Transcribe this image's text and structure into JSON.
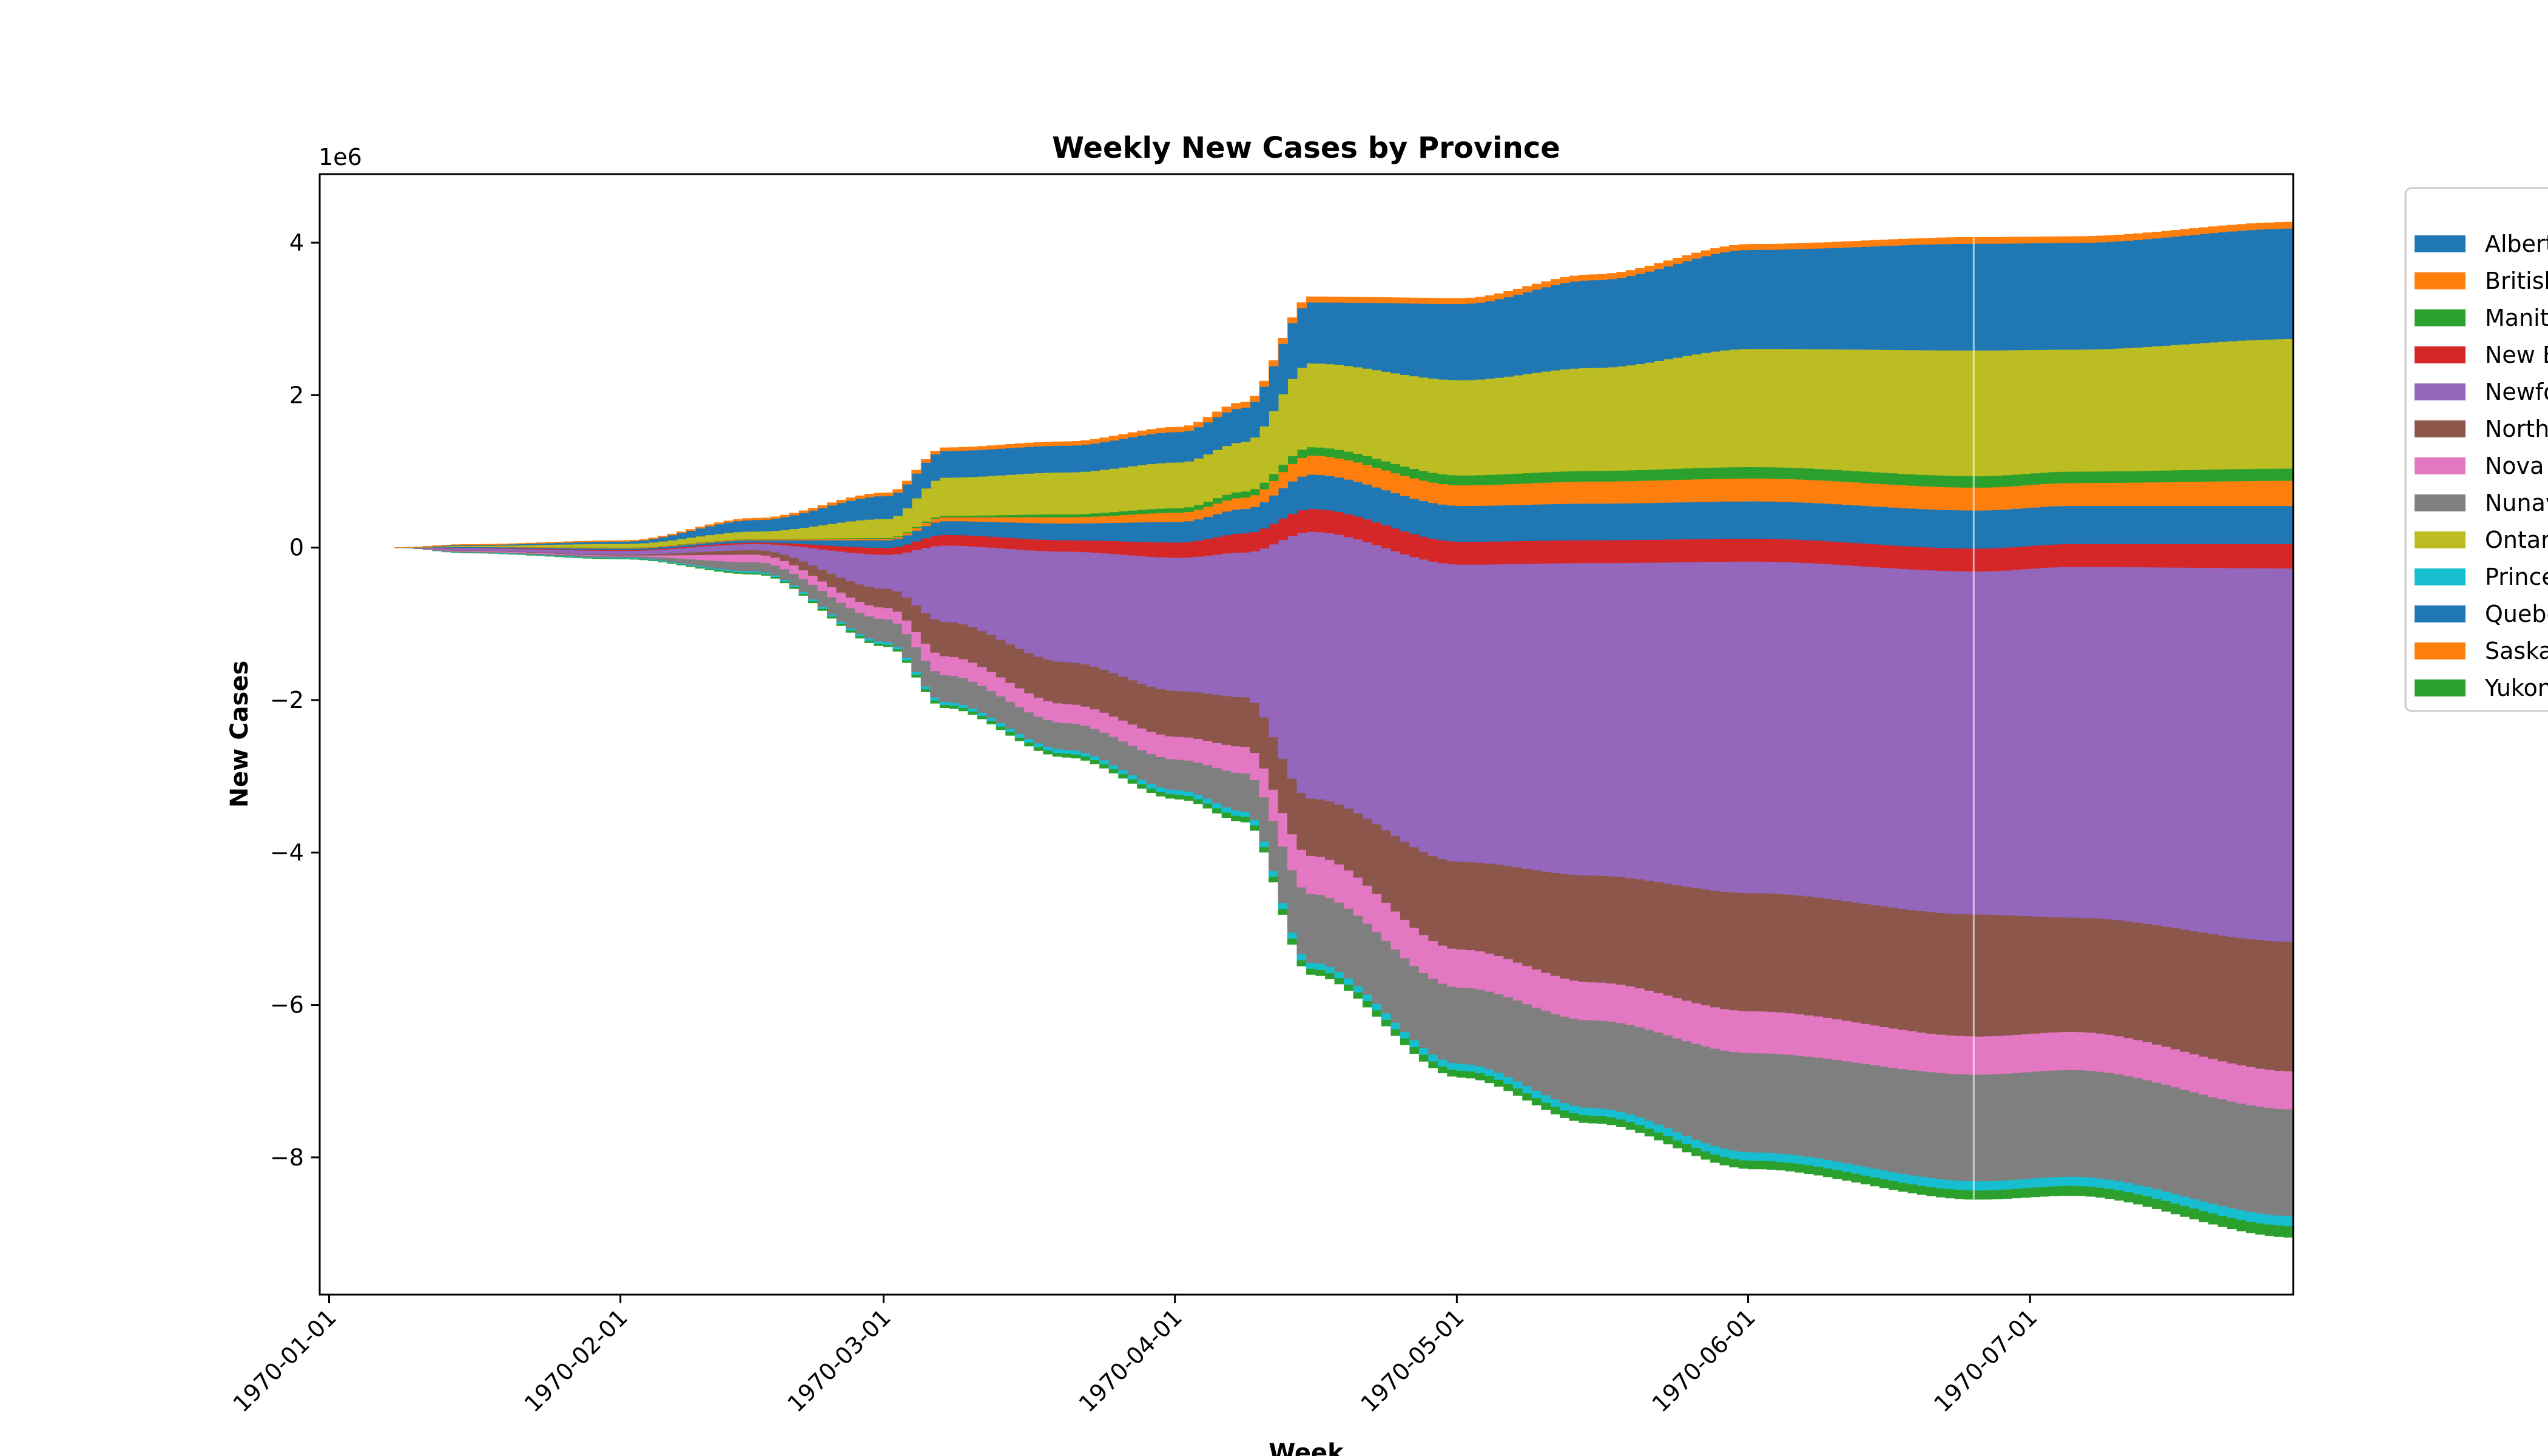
{
  "chart_data": {
    "type": "area",
    "style": "streamgraph (wiggle baseline, step-wise weekly bands)",
    "title": "Weekly New Cases by Province",
    "xlabel": "Week",
    "ylabel": "New Cases",
    "y_offset_label": "1e6",
    "ylim": [
      -9.8,
      4.9
    ],
    "y_ticks": [
      4,
      2,
      0,
      -2,
      -4,
      -6,
      -8
    ],
    "y_tick_labels": [
      "4",
      "2",
      "0",
      "−2",
      "−4",
      "−6",
      "−8"
    ],
    "xlim": [
      "1969-12-31",
      "1970-07-29"
    ],
    "x_ticks": [
      "1970-01-01",
      "1970-02-01",
      "1970-03-01",
      "1970-04-01",
      "1970-05-01",
      "1970-06-01",
      "1970-07-01"
    ],
    "grid": false,
    "legend_position": "outside-right",
    "anchor_dates": [
      "1970-01-08",
      "1970-01-15",
      "1970-02-01",
      "1970-02-15",
      "1970-03-01",
      "1970-03-07",
      "1970-03-20",
      "1970-04-01",
      "1970-04-08",
      "1970-04-15",
      "1970-05-01",
      "1970-05-15",
      "1970-06-01",
      "1970-06-25",
      "1970-07-05",
      "1970-07-29"
    ],
    "baseline": [
      0,
      -0.07,
      -0.15,
      -0.35,
      -1.3,
      -2.1,
      -2.75,
      -3.3,
      -3.6,
      -5.6,
      -6.95,
      -7.55,
      -8.15,
      -8.55,
      -8.5,
      -9.05
    ],
    "series": [
      {
        "name": "Yukon",
        "color": "#2ca02c",
        "values": [
          0,
          0.005,
          0.01,
          0.02,
          0.03,
          0.04,
          0.05,
          0.06,
          0.07,
          0.08,
          0.09,
          0.1,
          0.11,
          0.12,
          0.13,
          0.15
        ]
      },
      {
        "name": "Prince Edward Island",
        "color": "#17becf",
        "values": [
          0,
          0.005,
          0.01,
          0.02,
          0.03,
          0.04,
          0.05,
          0.06,
          0.07,
          0.08,
          0.09,
          0.1,
          0.11,
          0.12,
          0.12,
          0.13
        ]
      },
      {
        "name": "Nunavut",
        "color": "#7f7f7f",
        "values": [
          0,
          0.01,
          0.02,
          0.12,
          0.3,
          0.35,
          0.35,
          0.4,
          0.5,
          0.9,
          1.0,
          1.15,
          1.3,
          1.4,
          1.4,
          1.4
        ]
      },
      {
        "name": "Nova Scotia",
        "color": "#e377c2",
        "values": [
          0,
          0.01,
          0.01,
          0.1,
          0.15,
          0.25,
          0.25,
          0.3,
          0.35,
          0.5,
          0.5,
          0.5,
          0.55,
          0.5,
          0.5,
          0.5
        ]
      },
      {
        "name": "Northwest Territories",
        "color": "#8c564b",
        "values": [
          0,
          0.005,
          0.01,
          0.06,
          0.25,
          0.45,
          0.55,
          0.6,
          0.65,
          0.75,
          1.15,
          1.4,
          1.55,
          1.6,
          1.5,
          1.7
        ]
      },
      {
        "name": "Newfoundland and Labrador",
        "color": "#9467bd",
        "values": [
          0,
          0.03,
          0.05,
          0.08,
          0.45,
          1.0,
          1.45,
          1.75,
          1.9,
          3.5,
          3.9,
          4.1,
          4.35,
          4.5,
          4.6,
          4.9
        ]
      },
      {
        "name": "New Brunswick",
        "color": "#d62728",
        "values": [
          0,
          0.005,
          0.01,
          0.02,
          0.09,
          0.14,
          0.15,
          0.2,
          0.25,
          0.3,
          0.3,
          0.3,
          0.3,
          0.3,
          0.3,
          0.32
        ]
      },
      {
        "name": "Quebec",
        "color": "#1f77b4",
        "values": [
          0,
          0.01,
          0.02,
          0.03,
          0.1,
          0.18,
          0.22,
          0.27,
          0.32,
          0.45,
          0.47,
          0.48,
          0.49,
          0.5,
          0.5,
          0.5
        ]
      },
      {
        "name": "Saskatchewan",
        "color": "#ff7f0e",
        "values": [
          0,
          0.005,
          0.01,
          0.01,
          0.02,
          0.05,
          0.08,
          0.12,
          0.15,
          0.25,
          0.27,
          0.29,
          0.3,
          0.3,
          0.3,
          0.33
        ]
      },
      {
        "name": "Manitoba",
        "color": "#2ca02c",
        "values": [
          0,
          0.001,
          0.002,
          0.005,
          0.01,
          0.02,
          0.04,
          0.06,
          0.08,
          0.11,
          0.13,
          0.14,
          0.15,
          0.15,
          0.15,
          0.16
        ]
      },
      {
        "name": "Ontario",
        "color": "#bcbd22",
        "values": [
          0,
          0.01,
          0.05,
          0.1,
          0.25,
          0.5,
          0.55,
          0.6,
          0.65,
          1.1,
          1.25,
          1.35,
          1.55,
          1.65,
          1.6,
          1.7
        ]
      },
      {
        "name": "Alberta",
        "color": "#1f77b4",
        "values": [
          0,
          0.01,
          0.03,
          0.15,
          0.3,
          0.35,
          0.35,
          0.4,
          0.45,
          0.8,
          1.0,
          1.15,
          1.3,
          1.4,
          1.4,
          1.45
        ]
      },
      {
        "name": "British Columbia",
        "color": "#ff7f0e",
        "values": [
          0,
          0.005,
          0.01,
          0.02,
          0.04,
          0.04,
          0.05,
          0.06,
          0.07,
          0.07,
          0.07,
          0.07,
          0.07,
          0.08,
          0.08,
          0.08
        ]
      }
    ],
    "legend": {
      "entries": [
        {
          "label": "Alberta",
          "color": "#1f77b4"
        },
        {
          "label": "British Columbia",
          "color": "#ff7f0e"
        },
        {
          "label": "Manitoba",
          "color": "#2ca02c"
        },
        {
          "label": "New Brunswick",
          "color": "#d62728"
        },
        {
          "label": "Newfoundland and Labrador",
          "color": "#9467bd"
        },
        {
          "label": "Northwest Territories",
          "color": "#8c564b"
        },
        {
          "label": "Nova Scotia",
          "color": "#e377c2"
        },
        {
          "label": "Nunavut",
          "color": "#7f7f7f"
        },
        {
          "label": "Ontario",
          "color": "#bcbd22"
        },
        {
          "label": "Prince Edward Island",
          "color": "#17becf"
        },
        {
          "label": "Quebec",
          "color": "#1f77b4"
        },
        {
          "label": "Saskatchewan",
          "color": "#ff7f0e"
        },
        {
          "label": "Yukon",
          "color": "#2ca02c"
        }
      ]
    },
    "marker_line_date": "1970-06-25",
    "marker_line_color": "#ffffff"
  }
}
